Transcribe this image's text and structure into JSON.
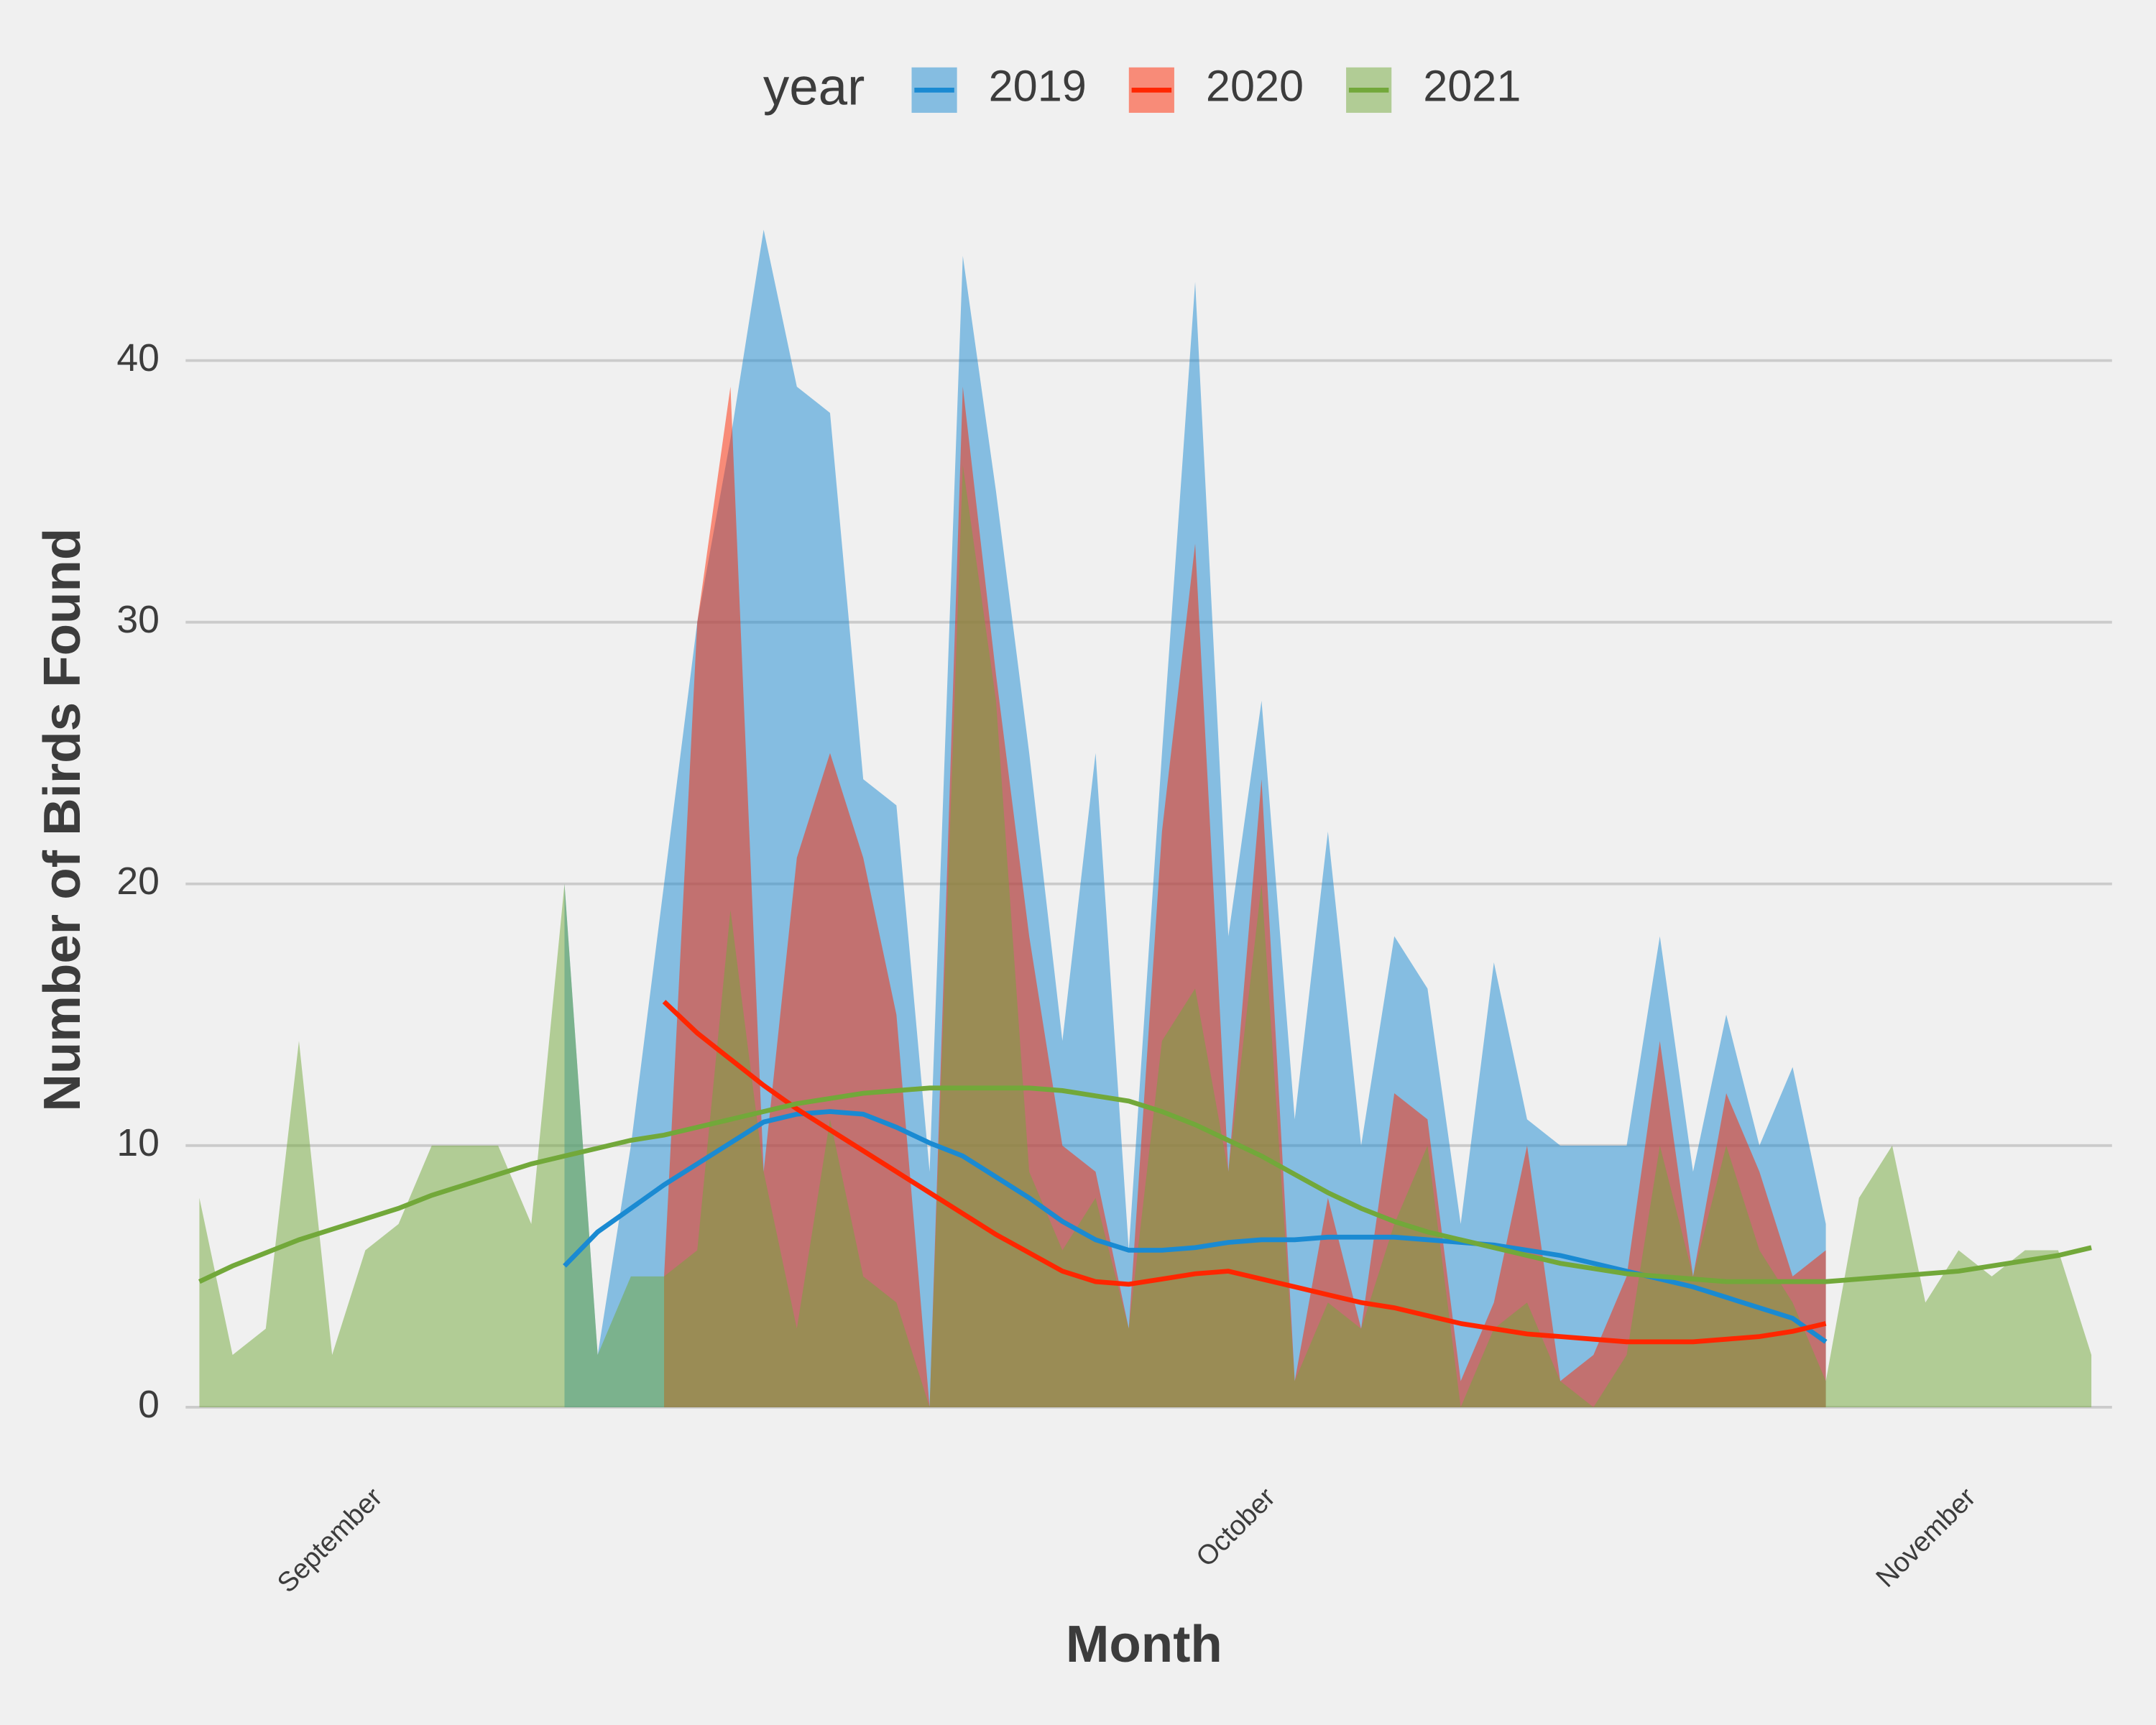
{
  "chart_data": {
    "type": "area",
    "x_label": "Month",
    "y_label": "Number of Birds Found",
    "legend_title": "year",
    "legend": "top",
    "grid": true,
    "x": [
      0,
      1,
      2,
      3,
      4,
      5,
      6,
      7,
      8,
      9,
      10,
      11,
      12,
      13,
      14,
      15,
      16,
      17,
      18,
      19,
      20,
      21,
      22,
      23,
      24,
      25,
      26,
      27,
      28,
      29,
      30,
      31,
      32,
      33,
      34,
      35,
      36,
      37,
      38,
      39,
      40,
      41,
      42,
      43,
      44,
      45,
      46,
      47,
      48,
      49,
      50,
      51,
      52,
      53,
      54,
      55,
      56,
      57
    ],
    "xlim": [
      0,
      57
    ],
    "xticks": [
      {
        "value": 5.4,
        "label": "September"
      },
      {
        "value": 32.3,
        "label": "October"
      },
      {
        "value": 53.4,
        "label": "November"
      }
    ],
    "ylim": [
      0,
      45
    ],
    "yticks": [
      0,
      10,
      20,
      30,
      40
    ],
    "series": [
      {
        "name": "2019",
        "color": "#1a8ad2",
        "values": [
          null,
          null,
          null,
          null,
          null,
          null,
          null,
          null,
          null,
          null,
          null,
          20,
          2,
          10,
          20,
          30,
          37,
          45,
          39,
          38,
          24,
          23,
          9,
          44,
          35,
          25,
          14,
          25,
          6,
          25,
          43,
          18,
          27,
          11,
          22,
          10,
          18,
          16,
          7,
          17,
          11,
          10,
          10,
          10,
          18,
          9,
          15,
          10,
          13,
          7,
          null,
          null,
          null,
          null,
          null,
          null,
          null,
          null
        ],
        "trend": [
          null,
          null,
          null,
          null,
          null,
          null,
          null,
          null,
          null,
          null,
          null,
          5.4,
          6.7,
          7.6,
          8.5,
          9.3,
          10.1,
          10.9,
          11.2,
          11.3,
          11.2,
          10.7,
          10.1,
          9.6,
          8.8,
          8,
          7.1,
          6.4,
          6,
          6,
          6.1,
          6.3,
          6.4,
          6.4,
          6.5,
          6.5,
          6.5,
          6.4,
          6.3,
          6.2,
          6,
          5.8,
          5.5,
          5.2,
          4.9,
          4.6,
          4.2,
          3.8,
          3.4,
          2.5,
          null,
          null,
          null,
          null,
          null,
          null,
          null,
          null
        ]
      },
      {
        "name": "2020",
        "color": "#ff2600",
        "values": [
          null,
          null,
          null,
          null,
          null,
          null,
          null,
          null,
          null,
          null,
          null,
          null,
          null,
          null,
          5,
          30,
          39,
          9,
          21,
          25,
          21,
          15,
          0,
          39,
          28,
          18,
          10,
          9,
          3,
          22,
          33,
          9,
          24,
          1,
          8,
          3,
          12,
          11,
          1,
          4,
          10,
          1,
          2,
          5,
          14,
          5,
          12,
          9,
          5,
          6,
          null,
          null,
          null,
          null,
          null,
          null,
          null,
          null
        ],
        "trend": [
          null,
          null,
          null,
          null,
          null,
          null,
          null,
          null,
          null,
          null,
          null,
          null,
          null,
          null,
          15.5,
          14.3,
          13.3,
          12.3,
          11.4,
          10.6,
          9.8,
          9,
          8.2,
          7.4,
          6.6,
          5.9,
          5.2,
          4.8,
          4.7,
          4.9,
          5.1,
          5.2,
          4.9,
          4.6,
          4.3,
          4,
          3.8,
          3.5,
          3.2,
          3,
          2.8,
          2.7,
          2.6,
          2.5,
          2.5,
          2.5,
          2.6,
          2.7,
          2.9,
          3.2,
          null,
          null,
          null,
          null,
          null,
          null,
          null,
          null
        ]
      },
      {
        "name": "2021",
        "color": "#72a83a",
        "values": [
          8,
          2,
          3,
          14,
          2,
          6,
          7,
          10,
          10,
          10,
          7,
          20,
          2,
          5,
          5,
          6,
          19,
          9,
          3,
          11,
          5,
          4,
          0,
          36,
          27,
          9,
          6,
          8,
          3,
          14,
          16,
          9,
          20,
          1,
          4,
          3,
          7,
          10,
          0,
          3,
          4,
          1,
          0,
          2,
          10,
          5,
          10,
          6,
          4,
          1,
          8,
          10,
          4,
          6,
          5,
          6,
          6,
          2
        ],
        "trend": [
          4.8,
          5.4,
          5.9,
          6.4,
          6.8,
          7.2,
          7.6,
          8.1,
          8.5,
          8.9,
          9.3,
          9.6,
          9.9,
          10.2,
          10.4,
          10.7,
          11,
          11.3,
          11.6,
          11.8,
          12,
          12.1,
          12.2,
          12.2,
          12.2,
          12.2,
          12.1,
          11.9,
          11.7,
          11.3,
          10.8,
          10.2,
          9.6,
          8.9,
          8.2,
          7.6,
          7.1,
          6.7,
          6.4,
          6.1,
          5.8,
          5.5,
          5.3,
          5.1,
          5,
          4.9,
          4.8,
          4.8,
          4.8,
          4.8,
          4.9,
          5,
          5.1,
          5.2,
          5.4,
          5.6,
          5.8,
          6.1
        ]
      }
    ]
  }
}
